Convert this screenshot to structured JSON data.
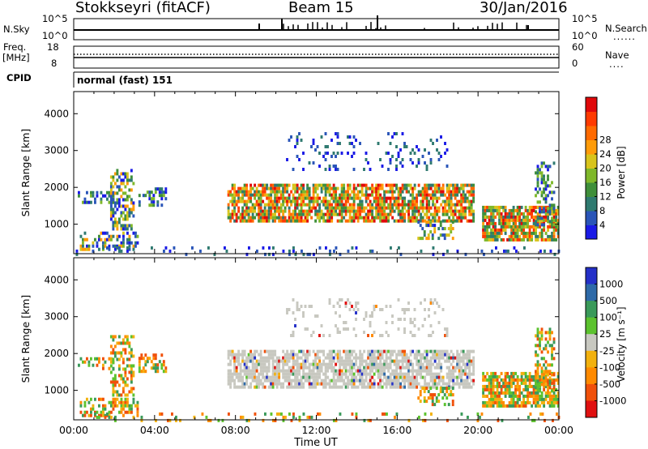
{
  "header": {
    "station": "Stokkseyri (fitACF)",
    "beam": "Beam 15",
    "date": "30/Jan/2016"
  },
  "top_panels": {
    "nsky": {
      "label": "N.Sky",
      "left_ticks": [
        "10^5",
        "10^0"
      ],
      "right_ticks": [
        "10^5",
        "10^0"
      ],
      "right_label": "N.Search"
    },
    "freq": {
      "label_line1": "Freq.",
      "label_line2": "[MHz]",
      "left_ticks": [
        "18",
        "8"
      ],
      "right_ticks": [
        "60",
        "0"
      ],
      "right_label": "Nave"
    },
    "cpid": {
      "label": "CPID",
      "text": "normal (fast) 151"
    }
  },
  "chart_data": [
    {
      "type": "heatmap",
      "name": "Power",
      "ylabel": "Slant Range [km]",
      "ylim": [
        200,
        4600
      ],
      "yticks": [
        1000,
        2000,
        3000,
        4000
      ],
      "xlim": [
        0,
        24
      ],
      "colorbar": {
        "label": "Power [dB]",
        "ticks": [
          "4",
          "8",
          "12",
          "16",
          "20",
          "24",
          "28"
        ],
        "colors": [
          "#1a1ae6",
          "#2a55b8",
          "#2f7a70",
          "#3f8f3a",
          "#7fb82a",
          "#d8c41c",
          "#ff9c0a",
          "#ff6a00",
          "#ff3a00",
          "#e0080a"
        ]
      }
    },
    {
      "type": "heatmap",
      "name": "Velocity",
      "ylabel": "Slant Range [km]",
      "ylim": [
        200,
        4600
      ],
      "yticks": [
        1000,
        2000,
        3000,
        4000
      ],
      "xlim": [
        0,
        24
      ],
      "colorbar": {
        "label": "Velocity [m s⁻¹]",
        "ticks": [
          "1000",
          "500",
          "100",
          "25",
          "-25",
          "-100",
          "-500",
          "-1000"
        ],
        "colors": [
          "#2430c8",
          "#2e6aa8",
          "#3a9a5a",
          "#5cc22e",
          "#c8c8c0",
          "#f2b10e",
          "#ff8a00",
          "#f0500a",
          "#e01010"
        ]
      }
    }
  ],
  "time_axis": {
    "xlabel": "Time UT",
    "ticks": [
      "00:00",
      "04:00",
      "08:00",
      "12:00",
      "16:00",
      "20:00",
      "00:00"
    ]
  }
}
